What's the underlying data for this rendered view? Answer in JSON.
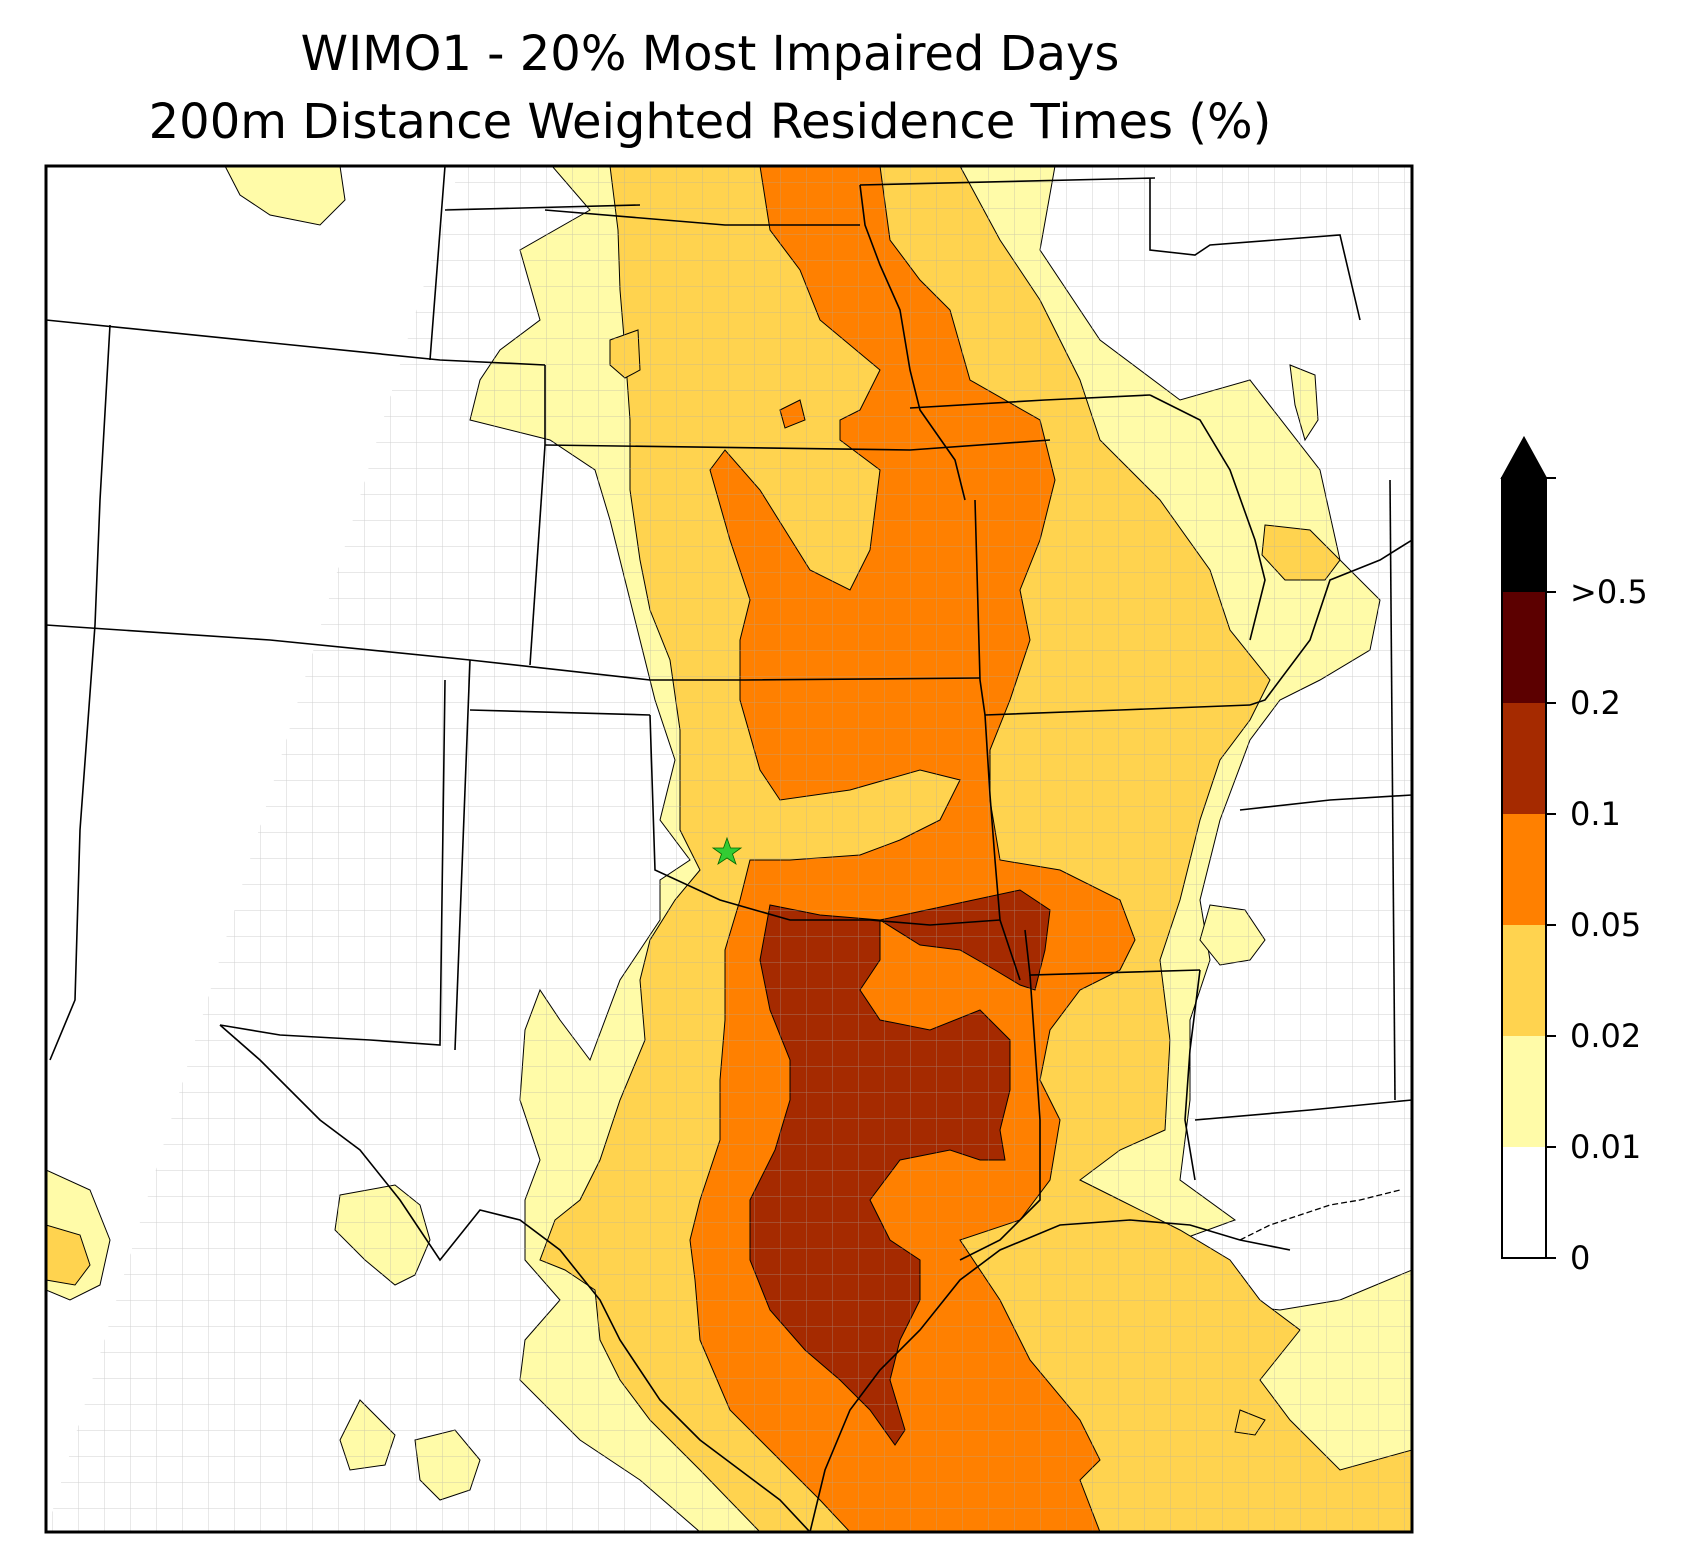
{
  "title": {
    "line1": "WIMO1 - 20% Most Impaired Days",
    "line2": "200m Distance Weighted Residence Times (%)"
  },
  "site_marker": {
    "name": "WIMO1",
    "symbol": "star",
    "color": "#33cc33"
  },
  "colorbar": {
    "extend": "max",
    "levels": [
      {
        "label": "0",
        "value": 0,
        "color": "#ffffff"
      },
      {
        "label": "0.01",
        "value": 0.01,
        "color": "#fffba8"
      },
      {
        "label": "0.02",
        "value": 0.02,
        "color": "#ffd34f"
      },
      {
        "label": "0.05",
        "value": 0.05,
        "color": "#ff8000"
      },
      {
        "label": "0.1",
        "value": 0.1,
        "color": "#a52a00"
      },
      {
        "label": "0.2",
        "value": 0.2,
        "color": "#5c0000"
      },
      {
        "label": ">0.5",
        "value": 0.5,
        "color": "#000000"
      }
    ]
  },
  "map": {
    "boundary_color": "#000000",
    "county_color": "#aaaaaa",
    "background": "#ffffff"
  }
}
